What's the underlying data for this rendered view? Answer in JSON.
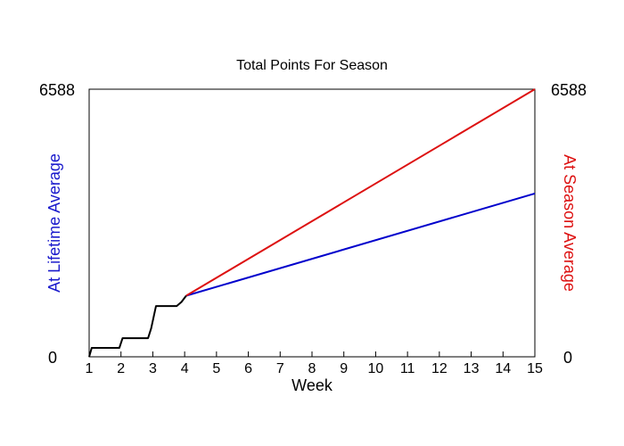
{
  "chart_data": {
    "type": "line",
    "title": "Total Points For Season",
    "xlabel": "Week",
    "ylabel_left": "At Lifetime Average",
    "ylabel_right": "At Season Average",
    "xlim": [
      1,
      15
    ],
    "ylim": [
      0,
      6588
    ],
    "x_ticks": [
      "1",
      "2",
      "3",
      "4",
      "5",
      "6",
      "7",
      "8",
      "9",
      "10",
      "11",
      "12",
      "13",
      "14",
      "15"
    ],
    "y_tick_left": {
      "min": "0",
      "max": "6588"
    },
    "y_tick_right": {
      "min": "0",
      "max": "6588"
    },
    "grid": false,
    "colors": {
      "actual": "#000000",
      "lifetime": "#0000cc",
      "season": "#dd1111"
    },
    "series": [
      {
        "key": "actual",
        "x": [
          1.0,
          1.08,
          1.15,
          1.95,
          2.05,
          2.85,
          2.95,
          3.1,
          3.75,
          3.9,
          4.05
        ],
        "y": [
          0,
          220,
          220,
          220,
          460,
          460,
          700,
          1250,
          1250,
          1350,
          1505
        ]
      },
      {
        "key": "lifetime",
        "x": [
          4.05,
          15
        ],
        "y": [
          1505,
          4020
        ]
      },
      {
        "key": "season",
        "x": [
          4.05,
          15
        ],
        "y": [
          1505,
          6588
        ]
      }
    ]
  }
}
